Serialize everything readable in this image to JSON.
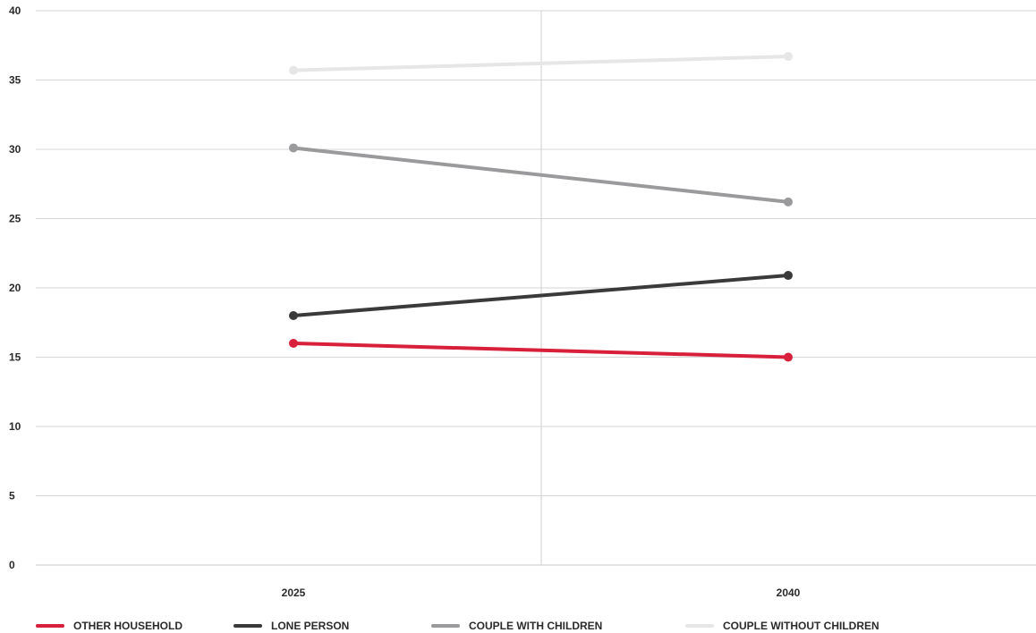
{
  "chart_data": {
    "type": "line",
    "title": "",
    "xlabel": "",
    "ylabel": "",
    "categories": [
      "2025",
      "2040"
    ],
    "ylim": [
      0,
      40
    ],
    "yticks": [
      0,
      5,
      10,
      15,
      20,
      25,
      30,
      35,
      40
    ],
    "grid": true,
    "legend_position": "bottom",
    "series": [
      {
        "name": "OTHER HOUSEHOLD",
        "color": "#d8203a",
        "values": [
          16.0,
          15.0
        ]
      },
      {
        "name": "LONE PERSON",
        "color": "#3a3a3a",
        "values": [
          18.0,
          20.9
        ]
      },
      {
        "name": "COUPLE WITH CHILDREN",
        "color": "#9a9a9c",
        "values": [
          30.1,
          26.2
        ]
      },
      {
        "name": "COUPLE WITHOUT CHILDREN",
        "color": "#e6e6e6",
        "values": [
          35.7,
          36.7
        ]
      }
    ]
  }
}
